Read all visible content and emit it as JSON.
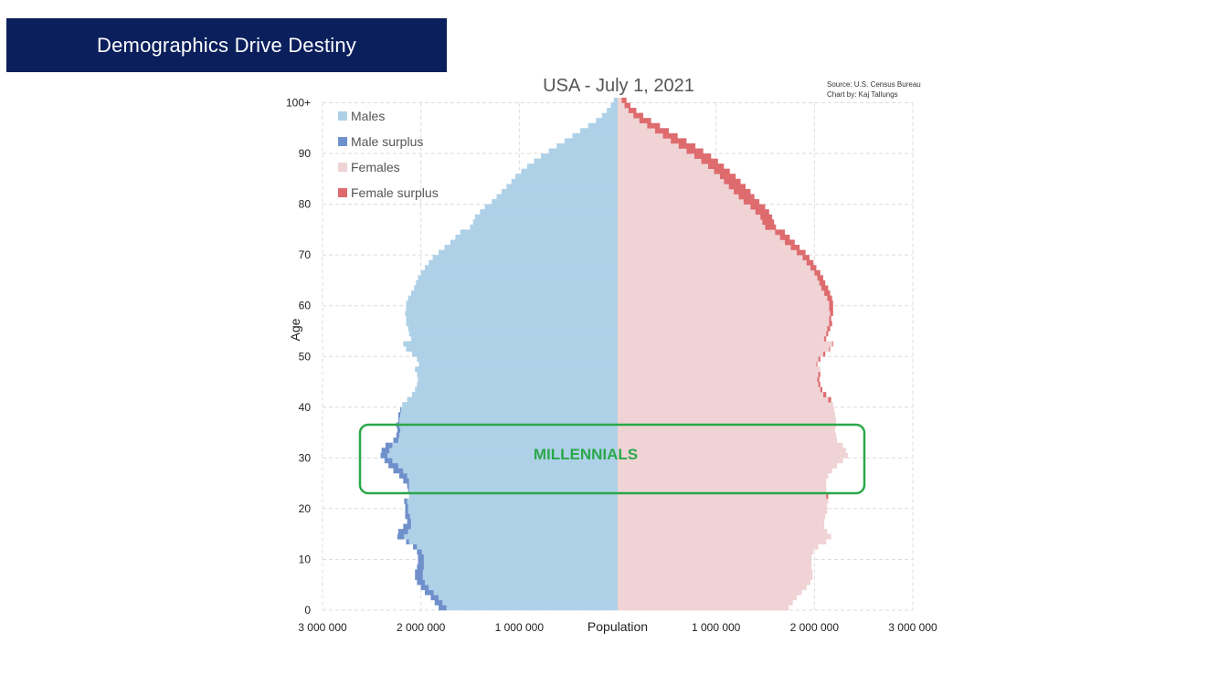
{
  "slide": {
    "title": "Demographics Drive Destiny"
  },
  "colors": {
    "banner": "#0b1f5c",
    "males": "#afd1e8",
    "male_surplus": "#6f90cb",
    "females": "#f0d3d5",
    "female_surplus": "#de6b6e",
    "highlight": "#2aa84a"
  },
  "chart_data": {
    "type": "bar",
    "orientation": "horizontal-population-pyramid",
    "title": "USA - July 1, 2021",
    "source": "Source: U.S. Census Bureau",
    "credit": "Chart by: Kaj Tallungs",
    "xlabel": "Population",
    "ylabel": "Age",
    "xlim": [
      -3000000,
      3000000
    ],
    "ylim": [
      0,
      100
    ],
    "x_ticks": [
      "3 000 000",
      "2 000 000",
      "1 000 000",
      "1 000 000",
      "2 000 000",
      "3 000 000"
    ],
    "y_ticks": [
      "0",
      "10",
      "20",
      "30",
      "40",
      "50",
      "60",
      "70",
      "80",
      "90",
      "100+"
    ],
    "grid": true,
    "legend_position": "top-left",
    "legend": [
      "Males",
      "Male surplus",
      "Females",
      "Female surplus"
    ],
    "annotation": {
      "label": "MILLENNIALS",
      "age_range": [
        25,
        37
      ]
    },
    "age_groups": [
      0,
      1,
      2,
      3,
      4,
      5,
      6,
      7,
      8,
      9,
      10,
      11,
      12,
      13,
      14,
      15,
      16,
      17,
      18,
      19,
      20,
      21,
      22,
      23,
      24,
      25,
      26,
      27,
      28,
      29,
      30,
      31,
      32,
      33,
      34,
      35,
      36,
      37,
      38,
      39,
      40,
      41,
      42,
      43,
      44,
      45,
      46,
      47,
      48,
      49,
      50,
      51,
      52,
      53,
      54,
      55,
      56,
      57,
      58,
      59,
      60,
      61,
      62,
      63,
      64,
      65,
      66,
      67,
      68,
      69,
      70,
      71,
      72,
      73,
      74,
      75,
      76,
      77,
      78,
      79,
      80,
      81,
      82,
      83,
      84,
      85,
      86,
      87,
      88,
      89,
      90,
      91,
      92,
      93,
      94,
      95,
      96,
      97,
      98,
      99,
      100
    ],
    "males": [
      1820000,
      1860000,
      1900000,
      1960000,
      2000000,
      2040000,
      2060000,
      2060000,
      2040000,
      2030000,
      2030000,
      2040000,
      2080000,
      2150000,
      2240000,
      2230000,
      2180000,
      2140000,
      2160000,
      2160000,
      2160000,
      2170000,
      2120000,
      2130000,
      2140000,
      2180000,
      2220000,
      2280000,
      2330000,
      2370000,
      2410000,
      2400000,
      2360000,
      2280000,
      2250000,
      2240000,
      2250000,
      2230000,
      2230000,
      2210000,
      2190000,
      2140000,
      2090000,
      2060000,
      2040000,
      2030000,
      2040000,
      2060000,
      2020000,
      2040000,
      2090000,
      2150000,
      2180000,
      2100000,
      2120000,
      2130000,
      2150000,
      2150000,
      2160000,
      2150000,
      2150000,
      2130000,
      2100000,
      2070000,
      2050000,
      2030000,
      2000000,
      1960000,
      1920000,
      1880000,
      1820000,
      1760000,
      1700000,
      1650000,
      1600000,
      1500000,
      1470000,
      1450000,
      1400000,
      1350000,
      1280000,
      1230000,
      1180000,
      1130000,
      1080000,
      1040000,
      980000,
      920000,
      850000,
      780000,
      700000,
      620000,
      540000,
      460000,
      380000,
      300000,
      220000,
      160000,
      110000,
      70000,
      40000
    ],
    "females": [
      1740000,
      1780000,
      1820000,
      1870000,
      1920000,
      1960000,
      1980000,
      1980000,
      1970000,
      1970000,
      1970000,
      1990000,
      2040000,
      2120000,
      2170000,
      2130000,
      2100000,
      2100000,
      2110000,
      2130000,
      2130000,
      2140000,
      2140000,
      2120000,
      2120000,
      2120000,
      2140000,
      2180000,
      2230000,
      2290000,
      2340000,
      2320000,
      2290000,
      2230000,
      2220000,
      2210000,
      2220000,
      2220000,
      2210000,
      2200000,
      2190000,
      2170000,
      2120000,
      2080000,
      2060000,
      2050000,
      2060000,
      2060000,
      2030000,
      2060000,
      2110000,
      2160000,
      2190000,
      2120000,
      2140000,
      2160000,
      2180000,
      2170000,
      2190000,
      2190000,
      2190000,
      2180000,
      2160000,
      2140000,
      2110000,
      2090000,
      2060000,
      2020000,
      1990000,
      1950000,
      1910000,
      1850000,
      1800000,
      1750000,
      1700000,
      1610000,
      1590000,
      1570000,
      1540000,
      1500000,
      1440000,
      1390000,
      1350000,
      1300000,
      1250000,
      1200000,
      1140000,
      1080000,
      1020000,
      950000,
      870000,
      790000,
      700000,
      610000,
      520000,
      430000,
      340000,
      260000,
      190000,
      130000,
      90000
    ]
  }
}
